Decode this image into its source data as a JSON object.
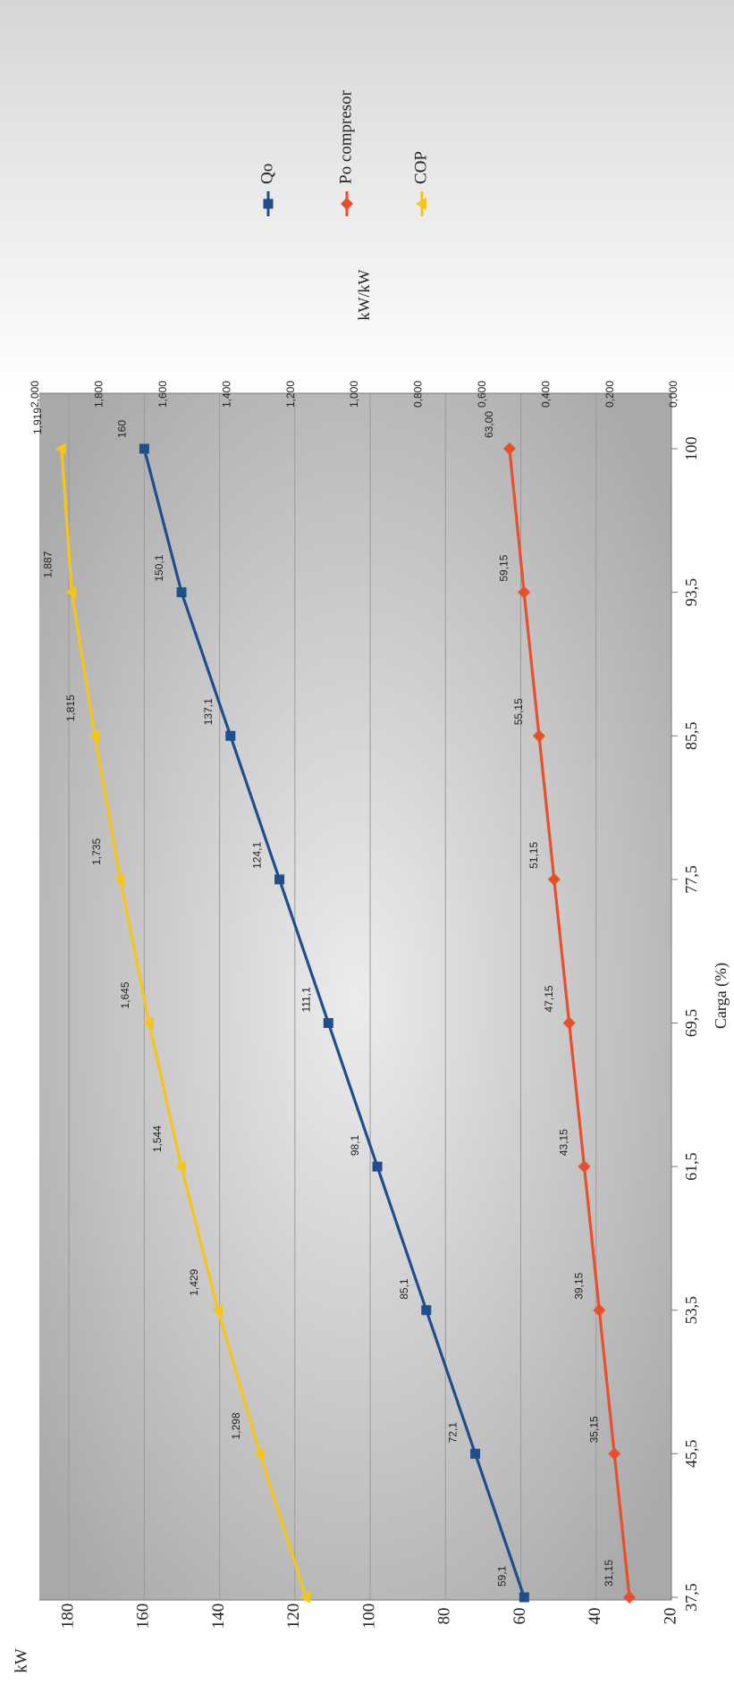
{
  "chart_data": {
    "type": "line",
    "orientation": "rotated-90-ccw",
    "x": [
      "37,5",
      "45,5",
      "53,5",
      "61,5",
      "69,5",
      "77,5",
      "85,5",
      "93,5",
      "100"
    ],
    "xlabel": "Carga (%)",
    "ylabel_left": "kW",
    "ylabel_right": "kW/kW",
    "ylim_left": [
      20,
      190
    ],
    "ylim_right": [
      0,
      2
    ],
    "yticks_left": [
      "20",
      "40",
      "60",
      "80",
      "100",
      "120",
      "140",
      "160",
      "180"
    ],
    "yticks_right": [
      "0,000",
      "0,200",
      "0,400",
      "0,600",
      "0,800",
      "1,000",
      "1,200",
      "1,400",
      "1,600",
      "1,800",
      "2,000"
    ],
    "grid": true,
    "legend_position": "right",
    "series": [
      {
        "name": "Qo",
        "axis": "left",
        "color": "#1f4e8c",
        "marker": "square",
        "values": [
          59.1,
          72.1,
          85.1,
          98.1,
          111.1,
          124.1,
          137.1,
          150.1,
          160
        ],
        "labels": [
          "59,1",
          "72,1",
          "85,1",
          "98,1",
          "111,1",
          "124,1",
          "137,1",
          "150,1",
          "160"
        ]
      },
      {
        "name": "Po compresor",
        "axis": "left",
        "color": "#e8502a",
        "marker": "diamond",
        "values": [
          31.15,
          35.15,
          39.15,
          43.15,
          47.15,
          51.15,
          55.15,
          59.15,
          63.0
        ],
        "labels": [
          "31,15",
          "35,15",
          "39,15",
          "43,15",
          "47,15",
          "51,15",
          "55,15",
          "59,15",
          "63,00"
        ]
      },
      {
        "name": "COP",
        "axis": "right",
        "color": "#f5c518",
        "marker": "triangle",
        "values": [
          1.153,
          1.298,
          1.429,
          1.544,
          1.645,
          1.735,
          1.815,
          1.887,
          1.919
        ],
        "labels": [
          "",
          "1,298",
          "1,429",
          "1,544",
          "1,645",
          "1,735",
          "1,815",
          "1,887",
          "1,919"
        ]
      }
    ]
  }
}
